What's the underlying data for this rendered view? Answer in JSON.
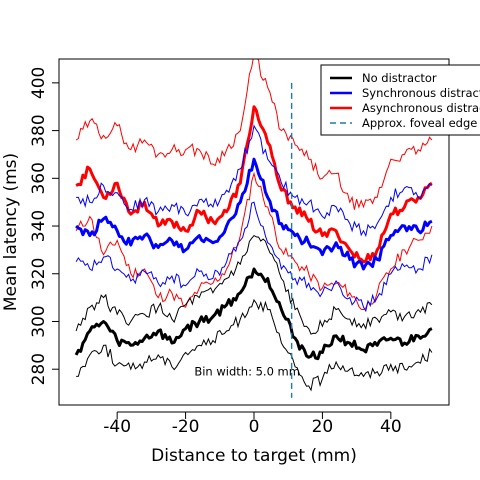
{
  "chart_data": {
    "type": "line",
    "title": "",
    "xlabel": "Distance to target (mm)",
    "ylabel": "Mean latency (ms)",
    "xlim": [
      -57,
      57
    ],
    "ylim": [
      265,
      410
    ],
    "xticks": [
      -40,
      -20,
      0,
      20,
      40
    ],
    "xtick_labels": [
      "-40",
      "-20",
      "0",
      "20",
      "40"
    ],
    "yticks": [
      280,
      300,
      320,
      340,
      360,
      380,
      400
    ],
    "ytick_labels": [
      "280",
      "300",
      "320",
      "340",
      "360",
      "380",
      "400"
    ],
    "grid": false,
    "legend_position": "top-right",
    "annotation": "Bin width: 5.0 mm",
    "foveal_edge_x": 11,
    "colors": {
      "no_distractor": "#000000",
      "synchronous": "#0000ff",
      "asynchronous": "#ff0000",
      "foveal_edge": "#1f78b4"
    },
    "legend": [
      {
        "label": "No distractor",
        "color": "#000000",
        "style": "solid"
      },
      {
        "label": "Synchronous distractor",
        "color": "#0000ff",
        "style": "solid"
      },
      {
        "label": "Asynchronous distractor",
        "color": "#ff0000",
        "style": "solid"
      },
      {
        "label": "Approx. foveal edge",
        "color": "#1f78b4",
        "style": "dashed"
      }
    ],
    "x": [
      -52,
      -48,
      -44,
      -40,
      -36,
      -32,
      -28,
      -24,
      -20,
      -16,
      -12,
      -8,
      -4,
      0,
      4,
      8,
      12,
      16,
      20,
      24,
      28,
      32,
      36,
      40,
      44,
      48,
      52
    ],
    "series": [
      {
        "key": "asynchronous",
        "color": "#ff0000",
        "values": [
          357,
          364,
          352,
          358,
          345,
          350,
          340,
          342,
          338,
          346,
          342,
          346,
          358,
          390,
          375,
          355,
          348,
          342,
          336,
          338,
          330,
          325,
          330,
          345,
          348,
          352,
          358
        ],
        "lower": [
          338,
          344,
          328,
          334,
          320,
          322,
          310,
          312,
          306,
          314,
          316,
          322,
          336,
          362,
          348,
          330,
          325,
          320,
          314,
          316,
          312,
          305,
          312,
          322,
          330,
          334,
          340
        ],
        "upper": [
          376,
          384,
          378,
          382,
          372,
          376,
          370,
          372,
          372,
          372,
          366,
          372,
          380,
          412,
          398,
          380,
          374,
          368,
          360,
          362,
          350,
          348,
          352,
          368,
          370,
          372,
          376
        ]
      },
      {
        "key": "synchronous",
        "color": "#0000ff",
        "values": [
          340,
          336,
          343,
          338,
          332,
          336,
          331,
          334,
          330,
          336,
          333,
          340,
          350,
          368,
          352,
          341,
          336,
          333,
          328,
          333,
          326,
          322,
          326,
          336,
          340,
          338,
          342
        ],
        "lower": [
          325,
          322,
          327,
          322,
          317,
          321,
          316,
          319,
          315,
          321,
          318,
          325,
          334,
          350,
          333,
          322,
          318,
          316,
          312,
          317,
          310,
          306,
          310,
          320,
          323,
          322,
          328
        ],
        "upper": [
          352,
          350,
          357,
          354,
          347,
          351,
          346,
          349,
          345,
          351,
          348,
          355,
          364,
          382,
          368,
          358,
          352,
          350,
          344,
          348,
          341,
          338,
          341,
          352,
          356,
          352,
          357
        ]
      },
      {
        "key": "no_distractor",
        "color": "#000000",
        "values": [
          286,
          296,
          300,
          292,
          290,
          293,
          296,
          291,
          297,
          300,
          302,
          307,
          312,
          322,
          318,
          305,
          293,
          285,
          287,
          294,
          291,
          288,
          290,
          293,
          291,
          294,
          297
        ],
        "lower": [
          277,
          286,
          290,
          282,
          280,
          283,
          286,
          281,
          287,
          290,
          292,
          296,
          301,
          309,
          305,
          291,
          281,
          273,
          276,
          283,
          280,
          277,
          279,
          282,
          280,
          283,
          287
        ],
        "upper": [
          296,
          306,
          310,
          303,
          300,
          303,
          306,
          301,
          307,
          310,
          312,
          318,
          324,
          336,
          331,
          318,
          305,
          297,
          298,
          305,
          301,
          299,
          301,
          304,
          302,
          305,
          307
        ]
      }
    ]
  }
}
